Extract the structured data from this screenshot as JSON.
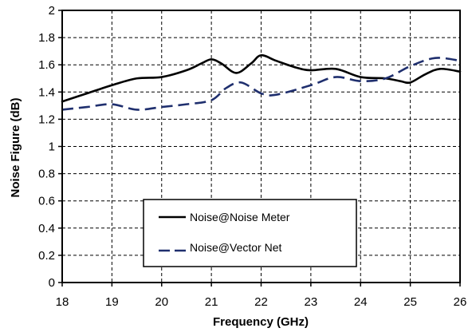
{
  "chart_data": {
    "type": "line",
    "title": "",
    "xlabel": "Frequency (GHz)",
    "ylabel": "Noise Figure (dB)",
    "xlim": [
      18,
      26
    ],
    "ylim": [
      0,
      2
    ],
    "x_ticks": [
      "18",
      "19",
      "20",
      "21",
      "22",
      "23",
      "24",
      "25",
      "26"
    ],
    "y_ticks": [
      "0",
      "0.2",
      "0.4",
      "0.6",
      "0.8",
      "1",
      "1.2",
      "1.4",
      "1.6",
      "1.8",
      "2"
    ],
    "grid": true,
    "legend_position": "bottom-center",
    "series": [
      {
        "name": "Noise@Noise Meter",
        "color": "#000000",
        "dash": "solid",
        "x": [
          18,
          18.5,
          19,
          19.5,
          20,
          20.5,
          20.8,
          21,
          21.2,
          21.5,
          21.8,
          22,
          22.3,
          22.7,
          23,
          23.5,
          24,
          24.5,
          24.8,
          25,
          25.3,
          25.6,
          26
        ],
        "y": [
          1.33,
          1.39,
          1.45,
          1.5,
          1.51,
          1.56,
          1.61,
          1.64,
          1.61,
          1.54,
          1.61,
          1.67,
          1.63,
          1.58,
          1.56,
          1.57,
          1.51,
          1.5,
          1.48,
          1.47,
          1.53,
          1.57,
          1.55
        ]
      },
      {
        "name": "Noise@Vector Net",
        "color": "#1f2f6e",
        "dash": "dashed",
        "x": [
          18,
          18.5,
          19,
          19.5,
          20,
          20.5,
          21,
          21.3,
          21.6,
          22,
          22.3,
          23,
          23.5,
          24,
          24.5,
          25,
          25.5,
          26
        ],
        "y": [
          1.27,
          1.29,
          1.31,
          1.27,
          1.29,
          1.31,
          1.34,
          1.43,
          1.47,
          1.39,
          1.38,
          1.45,
          1.51,
          1.48,
          1.5,
          1.59,
          1.65,
          1.63
        ]
      }
    ]
  }
}
